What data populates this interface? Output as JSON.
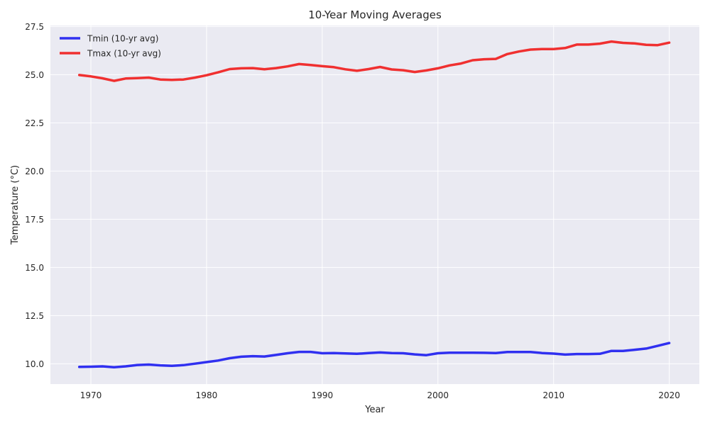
{
  "chart_data": {
    "type": "line",
    "title": "10-Year Moving Averages",
    "xlabel": "Year",
    "ylabel": "Temperature (°C)",
    "xlim": [
      1966.5,
      2022.6
    ],
    "ylim": [
      8.95,
      27.55
    ],
    "grid": true,
    "legend_position": "top-left",
    "xticks": [
      1970,
      1980,
      1990,
      2000,
      2010,
      2020
    ],
    "yticks": [
      10.0,
      12.5,
      15.0,
      17.5,
      20.0,
      22.5,
      25.0,
      27.5
    ],
    "ytick_labels": [
      "10.0",
      "12.5",
      "15.0",
      "17.5",
      "20.0",
      "22.5",
      "25.0",
      "27.5"
    ],
    "background_color": "#eaeaf2",
    "x": [
      1969,
      1970,
      1971,
      1972,
      1973,
      1974,
      1975,
      1976,
      1977,
      1978,
      1979,
      1980,
      1981,
      1982,
      1983,
      1984,
      1985,
      1986,
      1987,
      1988,
      1989,
      1990,
      1991,
      1992,
      1993,
      1994,
      1995,
      1996,
      1997,
      1998,
      1999,
      2000,
      2001,
      2002,
      2003,
      2004,
      2005,
      2006,
      2007,
      2008,
      2009,
      2010,
      2011,
      2012,
      2013,
      2014,
      2015,
      2016,
      2017,
      2018,
      2019,
      2020
    ],
    "series": [
      {
        "name": "Tmin (10-yr avg)",
        "color": "#1f1ff0",
        "values": [
          9.84,
          9.85,
          9.87,
          9.82,
          9.87,
          9.94,
          9.96,
          9.92,
          9.9,
          9.93,
          10.01,
          10.09,
          10.17,
          10.29,
          10.37,
          10.4,
          10.38,
          10.46,
          10.55,
          10.62,
          10.62,
          10.55,
          10.56,
          10.54,
          10.52,
          10.56,
          10.59,
          10.56,
          10.55,
          10.49,
          10.45,
          10.55,
          10.58,
          10.58,
          10.58,
          10.57,
          10.56,
          10.61,
          10.61,
          10.61,
          10.56,
          10.53,
          10.48,
          10.51,
          10.51,
          10.52,
          10.67,
          10.67,
          10.73,
          10.79,
          10.93,
          11.08
        ]
      },
      {
        "name": "Tmax (10-yr avg)",
        "color": "#f01f1f",
        "values": [
          24.98,
          24.91,
          24.81,
          24.68,
          24.8,
          24.82,
          24.85,
          24.75,
          24.73,
          24.75,
          24.85,
          24.97,
          25.12,
          25.29,
          25.33,
          25.34,
          25.28,
          25.34,
          25.43,
          25.55,
          25.5,
          25.44,
          25.39,
          25.28,
          25.2,
          25.29,
          25.4,
          25.27,
          25.23,
          25.14,
          25.22,
          25.33,
          25.48,
          25.58,
          25.75,
          25.8,
          25.82,
          26.07,
          26.2,
          26.3,
          26.33,
          26.33,
          26.38,
          26.56,
          26.56,
          26.61,
          26.72,
          26.65,
          26.62,
          26.55,
          26.53,
          26.66
        ]
      }
    ]
  }
}
